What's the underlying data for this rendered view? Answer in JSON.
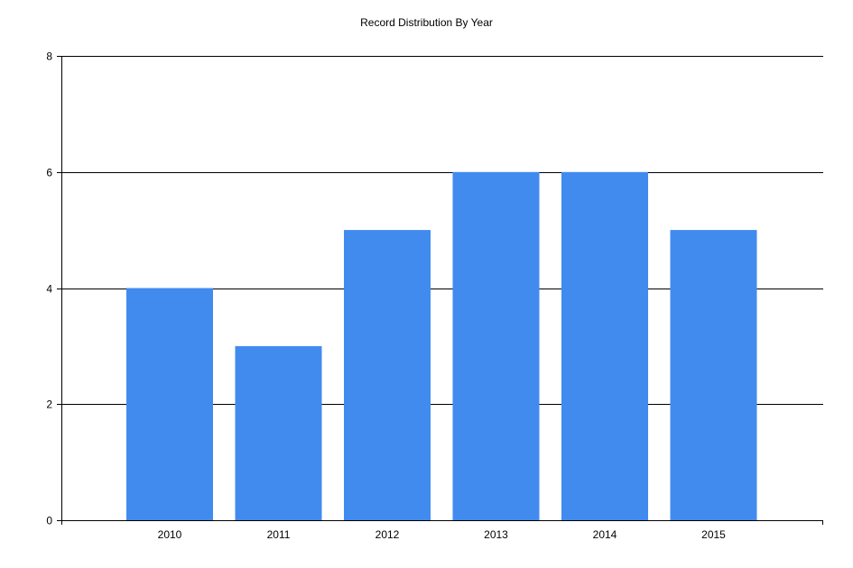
{
  "chart_data": {
    "type": "bar",
    "title": "Record Distribution By Year",
    "xlabel": "",
    "ylabel": "",
    "categories": [
      "2010",
      "2011",
      "2012",
      "2013",
      "2014",
      "2015"
    ],
    "values": [
      4,
      3,
      5,
      6,
      6,
      5
    ],
    "ylim": [
      0,
      8
    ],
    "yticks": [
      0,
      2,
      4,
      6,
      8
    ],
    "grid": true,
    "legend": "none",
    "bar_color": "#418bef",
    "grid_color": "#000000"
  }
}
